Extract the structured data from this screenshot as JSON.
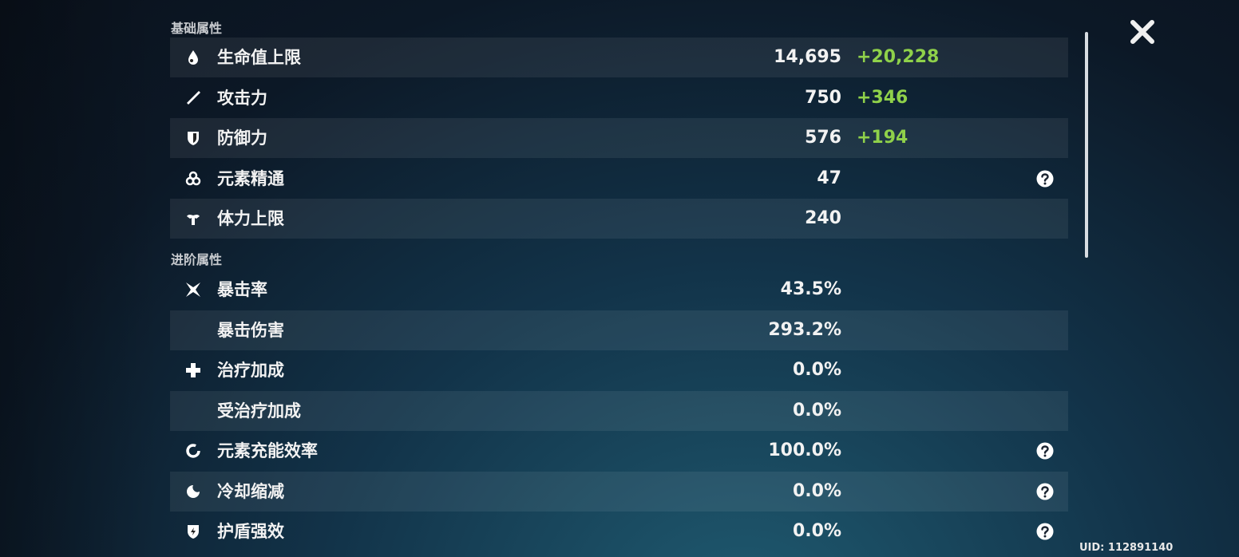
{
  "sections": [
    {
      "title": "基础属性",
      "rows": [
        {
          "label": "生命值上限",
          "value": "14,695",
          "bonus": "+20,228"
        },
        {
          "label": "攻击力",
          "value": "750",
          "bonus": "+346"
        },
        {
          "label": "防御力",
          "value": "576",
          "bonus": "+194"
        },
        {
          "label": "元素精通",
          "value": "47",
          "help": true
        },
        {
          "label": "体力上限",
          "value": "240"
        }
      ]
    },
    {
      "title": "进阶属性",
      "rows": [
        {
          "label": "暴击率",
          "value": "43.5%"
        },
        {
          "label": "暴击伤害",
          "value": "293.2%"
        },
        {
          "label": "治疗加成",
          "value": "0.0%"
        },
        {
          "label": "受治疗加成",
          "value": "0.0%"
        },
        {
          "label": "元素充能效率",
          "value": "100.0%",
          "help": true
        },
        {
          "label": "冷却缩减",
          "value": "0.0%",
          "help": true
        },
        {
          "label": "护盾强效",
          "value": "0.0%",
          "help": true
        }
      ]
    }
  ],
  "uid": "UID: 112891140"
}
